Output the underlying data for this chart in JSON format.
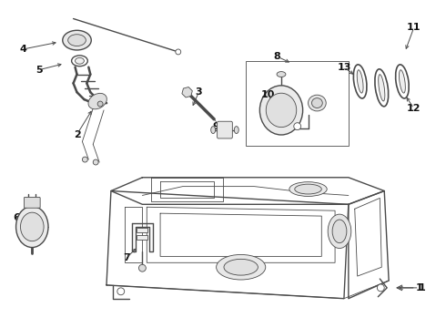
{
  "bg_color": "#ffffff",
  "line_color": "#4a4a4a",
  "label_color": "#111111",
  "lw_main": 1.0,
  "lw_thin": 0.6,
  "figsize": [
    4.9,
    3.6
  ],
  "dpi": 100,
  "xlim": [
    0,
    490
  ],
  "ylim": [
    0,
    360
  ]
}
